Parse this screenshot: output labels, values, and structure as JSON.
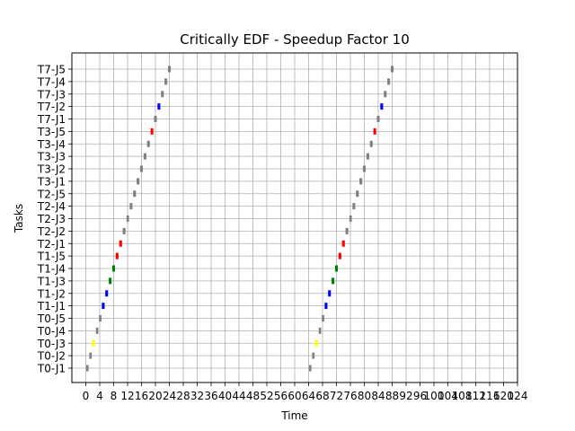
{
  "chart_data": {
    "type": "gantt",
    "title": "Critically EDF - Speedup Factor 10",
    "xlabel": "Time",
    "ylabel": "Tasks",
    "xlim": [
      -4,
      124
    ],
    "x_ticks": [
      0,
      4,
      8,
      12,
      16,
      20,
      24,
      28,
      32,
      36,
      40,
      44,
      48,
      52,
      56,
      60,
      64,
      68,
      72,
      76,
      80,
      84,
      88,
      92,
      96,
      100,
      104,
      108,
      112,
      116,
      120,
      124
    ],
    "grid": true,
    "categories": [
      "T0-J1",
      "T0-J2",
      "T0-J3",
      "T0-J4",
      "T0-J5",
      "T1-J1",
      "T1-J2",
      "T1-J3",
      "T1-J4",
      "T1-J5",
      "T2-J1",
      "T2-J2",
      "T2-J3",
      "T2-J4",
      "T2-J5",
      "T3-J1",
      "T3-J2",
      "T3-J3",
      "T3-J4",
      "T3-J5",
      "T7-J1",
      "T7-J2",
      "T7-J3",
      "T7-J4",
      "T7-J5"
    ],
    "segments": [
      {
        "task": "T0-J1",
        "start": 0.1,
        "end": 0.8,
        "color": "#808080"
      },
      {
        "task": "T0-J2",
        "start": 1.0,
        "end": 1.7,
        "color": "#808080"
      },
      {
        "task": "T0-J3",
        "start": 1.8,
        "end": 2.6,
        "color": "#ffff00"
      },
      {
        "task": "T0-J4",
        "start": 2.9,
        "end": 3.6,
        "color": "#808080"
      },
      {
        "task": "T0-J5",
        "start": 3.8,
        "end": 4.5,
        "color": "#808080"
      },
      {
        "task": "T1-J1",
        "start": 4.6,
        "end": 5.4,
        "color": "#0000ff"
      },
      {
        "task": "T1-J2",
        "start": 5.6,
        "end": 6.4,
        "color": "#0000ff"
      },
      {
        "task": "T1-J3",
        "start": 6.6,
        "end": 7.4,
        "color": "#008000"
      },
      {
        "task": "T1-J4",
        "start": 7.6,
        "end": 8.4,
        "color": "#008000"
      },
      {
        "task": "T1-J5",
        "start": 8.6,
        "end": 9.4,
        "color": "#ff0000"
      },
      {
        "task": "T2-J1",
        "start": 9.6,
        "end": 10.4,
        "color": "#ff0000"
      },
      {
        "task": "T2-J2",
        "start": 10.6,
        "end": 11.4,
        "color": "#808080"
      },
      {
        "task": "T2-J3",
        "start": 11.7,
        "end": 12.4,
        "color": "#808080"
      },
      {
        "task": "T2-J4",
        "start": 12.6,
        "end": 13.4,
        "color": "#808080"
      },
      {
        "task": "T2-J5",
        "start": 13.6,
        "end": 14.4,
        "color": "#808080"
      },
      {
        "task": "T3-J1",
        "start": 14.6,
        "end": 15.4,
        "color": "#808080"
      },
      {
        "task": "T3-J2",
        "start": 15.6,
        "end": 16.4,
        "color": "#808080"
      },
      {
        "task": "T3-J3",
        "start": 16.6,
        "end": 17.4,
        "color": "#808080"
      },
      {
        "task": "T3-J4",
        "start": 17.6,
        "end": 18.4,
        "color": "#808080"
      },
      {
        "task": "T3-J5",
        "start": 18.6,
        "end": 19.4,
        "color": "#ff0000"
      },
      {
        "task": "T7-J1",
        "start": 19.6,
        "end": 20.4,
        "color": "#808080"
      },
      {
        "task": "T7-J2",
        "start": 20.6,
        "end": 21.4,
        "color": "#0000ff"
      },
      {
        "task": "T7-J3",
        "start": 21.6,
        "end": 22.4,
        "color": "#808080"
      },
      {
        "task": "T7-J4",
        "start": 22.6,
        "end": 23.4,
        "color": "#808080"
      },
      {
        "task": "T7-J5",
        "start": 23.6,
        "end": 24.4,
        "color": "#808080"
      },
      {
        "task": "T0-J1",
        "start": 64.1,
        "end": 64.8,
        "color": "#808080"
      },
      {
        "task": "T0-J2",
        "start": 65.0,
        "end": 65.7,
        "color": "#808080"
      },
      {
        "task": "T0-J3",
        "start": 65.8,
        "end": 66.6,
        "color": "#ffff00"
      },
      {
        "task": "T0-J4",
        "start": 66.9,
        "end": 67.6,
        "color": "#808080"
      },
      {
        "task": "T0-J5",
        "start": 67.8,
        "end": 68.5,
        "color": "#808080"
      },
      {
        "task": "T1-J1",
        "start": 68.6,
        "end": 69.4,
        "color": "#0000ff"
      },
      {
        "task": "T1-J2",
        "start": 69.6,
        "end": 70.4,
        "color": "#0000ff"
      },
      {
        "task": "T1-J3",
        "start": 70.6,
        "end": 71.4,
        "color": "#008000"
      },
      {
        "task": "T1-J4",
        "start": 71.6,
        "end": 72.4,
        "color": "#008000"
      },
      {
        "task": "T1-J5",
        "start": 72.6,
        "end": 73.4,
        "color": "#ff0000"
      },
      {
        "task": "T2-J1",
        "start": 73.6,
        "end": 74.4,
        "color": "#ff0000"
      },
      {
        "task": "T2-J2",
        "start": 74.6,
        "end": 75.4,
        "color": "#808080"
      },
      {
        "task": "T2-J3",
        "start": 75.7,
        "end": 76.4,
        "color": "#808080"
      },
      {
        "task": "T2-J4",
        "start": 76.6,
        "end": 77.4,
        "color": "#808080"
      },
      {
        "task": "T2-J5",
        "start": 77.6,
        "end": 78.4,
        "color": "#808080"
      },
      {
        "task": "T3-J1",
        "start": 78.6,
        "end": 79.4,
        "color": "#808080"
      },
      {
        "task": "T3-J2",
        "start": 79.6,
        "end": 80.4,
        "color": "#808080"
      },
      {
        "task": "T3-J3",
        "start": 80.6,
        "end": 81.4,
        "color": "#808080"
      },
      {
        "task": "T3-J4",
        "start": 81.6,
        "end": 82.4,
        "color": "#808080"
      },
      {
        "task": "T3-J5",
        "start": 82.6,
        "end": 83.4,
        "color": "#ff0000"
      },
      {
        "task": "T7-J1",
        "start": 83.6,
        "end": 84.4,
        "color": "#808080"
      },
      {
        "task": "T7-J2",
        "start": 84.6,
        "end": 85.4,
        "color": "#0000ff"
      },
      {
        "task": "T7-J3",
        "start": 85.6,
        "end": 86.4,
        "color": "#808080"
      },
      {
        "task": "T7-J4",
        "start": 86.6,
        "end": 87.4,
        "color": "#808080"
      },
      {
        "task": "T7-J5",
        "start": 87.6,
        "end": 88.4,
        "color": "#808080"
      }
    ]
  }
}
